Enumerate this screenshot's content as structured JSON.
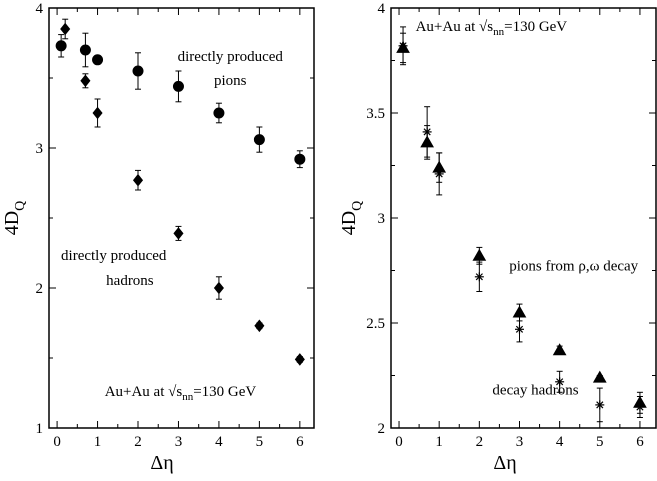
{
  "chart_data": [
    {
      "type": "scatter",
      "xlabel": "Δη",
      "ylabel": "4D",
      "ylabel_sub": "Q",
      "xlim": [
        -0.2,
        6.35
      ],
      "ylim": [
        1,
        4
      ],
      "xticks": [
        "0",
        "1",
        "2",
        "3",
        "4",
        "5",
        "6"
      ],
      "yticks": [
        "1",
        "2",
        "3",
        "4"
      ],
      "grid": false,
      "series": [
        {
          "name": "directly produced pions",
          "marker": "circle",
          "color": "#000000",
          "x": [
            0.1,
            0.7,
            1.0,
            2.0,
            3.0,
            4.0,
            5.0,
            6.0
          ],
          "y": [
            3.73,
            3.7,
            3.63,
            3.55,
            3.44,
            3.25,
            3.06,
            2.92
          ],
          "err": [
            0.08,
            0.12,
            0.03,
            0.13,
            0.11,
            0.07,
            0.09,
            0.06
          ]
        },
        {
          "name": "directly produced hadrons",
          "marker": "diamond",
          "color": "#000000",
          "x": [
            0.2,
            0.7,
            1.0,
            2.0,
            3.0,
            4.0,
            5.0,
            6.0
          ],
          "y": [
            3.85,
            3.48,
            3.25,
            2.77,
            2.39,
            2.0,
            1.73,
            1.49
          ],
          "err": [
            0.07,
            0.05,
            0.1,
            0.07,
            0.05,
            0.08,
            0.02,
            0.02
          ]
        }
      ],
      "annotations": [
        {
          "text": "directly produced",
          "x": 4.28,
          "y": 3.62
        },
        {
          "text": "pions",
          "x": 4.28,
          "y": 3.45
        },
        {
          "text": "directly produced",
          "x": 1.4,
          "y": 2.2
        },
        {
          "text": "hadrons",
          "x": 1.8,
          "y": 2.02
        },
        {
          "text": "Au+Au at √s",
          "sub": "nn",
          "after": "=130 GeV",
          "x": 3.05,
          "y": 1.23
        }
      ]
    },
    {
      "type": "scatter",
      "xlabel": "Δη",
      "ylabel": "4D",
      "ylabel_sub": "Q",
      "xlim": [
        -0.2,
        6.4
      ],
      "ylim": [
        2,
        4
      ],
      "xticks": [
        "0",
        "1",
        "2",
        "3",
        "4",
        "5",
        "6"
      ],
      "yticks": [
        "2",
        "2.5",
        "3",
        "3.5",
        "4"
      ],
      "grid": false,
      "series": [
        {
          "name": "pions from ρ,ω decay",
          "marker": "triangle",
          "color": "#000000",
          "x": [
            0.1,
            0.7,
            1.0,
            2.0,
            3.0,
            4.0,
            5.0,
            6.0
          ],
          "y": [
            3.81,
            3.36,
            3.24,
            2.82,
            2.55,
            2.37,
            2.24,
            2.12
          ],
          "err": [
            0.07,
            0.08,
            0.07,
            0.04,
            0.04,
            0.02,
            0.01,
            0.05
          ]
        },
        {
          "name": "decay hadrons",
          "marker": "star",
          "color": "#000000",
          "x": [
            0.1,
            0.7,
            1.0,
            2.0,
            3.0,
            4.0,
            5.0,
            6.0
          ],
          "y": [
            3.82,
            3.41,
            3.21,
            2.72,
            2.47,
            2.22,
            2.11,
            2.1
          ],
          "err": [
            0.09,
            0.12,
            0.1,
            0.07,
            0.06,
            0.05,
            0.08,
            0.05
          ]
        }
      ],
      "annotations": [
        {
          "text": "Au+Au at √s",
          "sub": "nn",
          "after": "=130 GeV",
          "x": 2.3,
          "y": 3.89
        },
        {
          "text": "pions from ρ,ω decay",
          "x": 4.35,
          "y": 2.75
        },
        {
          "text": "decay hadrons",
          "x": 3.4,
          "y": 2.16
        }
      ]
    }
  ]
}
